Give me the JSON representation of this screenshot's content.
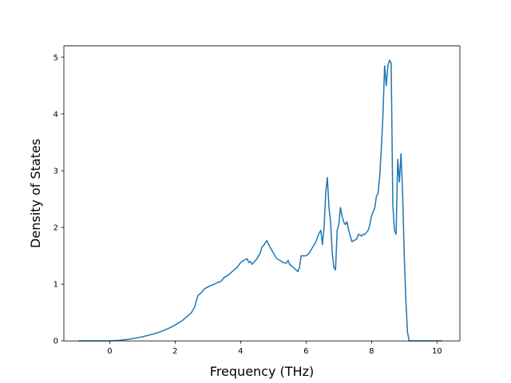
{
  "chart_data": {
    "type": "line",
    "title": "",
    "xlabel": "Frequency (THz)",
    "ylabel": "Density of States",
    "xlim": [
      -1.4,
      10.7
    ],
    "ylim": [
      0,
      5.2
    ],
    "xticks": [
      0,
      2,
      4,
      6,
      8,
      10
    ],
    "yticks": [
      0,
      1,
      2,
      3,
      4,
      5
    ],
    "grid": false,
    "legend": "none",
    "color": "#1f77b4",
    "series": [
      {
        "x": [
          -0.95,
          -0.5,
          0.0,
          0.3,
          0.6,
          0.9,
          1.2,
          1.5,
          1.8,
          2.0,
          2.2,
          2.35,
          2.5,
          2.6,
          2.65,
          2.7,
          2.8,
          2.9,
          3.0,
          3.1,
          3.2,
          3.3,
          3.4,
          3.5,
          3.6,
          3.7,
          3.8,
          3.9,
          4.0,
          4.1,
          4.2,
          4.25,
          4.3,
          4.35,
          4.4,
          4.5,
          4.6,
          4.65,
          4.7,
          4.8,
          4.9,
          5.0,
          5.1,
          5.2,
          5.3,
          5.4,
          5.45,
          5.5,
          5.6,
          5.7,
          5.75,
          5.8,
          5.85,
          5.9,
          6.0,
          6.1,
          6.2,
          6.3,
          6.4,
          6.45,
          6.5,
          6.55,
          6.6,
          6.65,
          6.7,
          6.75,
          6.8,
          6.85,
          6.9,
          6.95,
          7.0,
          7.05,
          7.1,
          7.15,
          7.2,
          7.25,
          7.3,
          7.4,
          7.5,
          7.55,
          7.6,
          7.7,
          7.75,
          7.8,
          7.9,
          7.95,
          8.0,
          8.1,
          8.15,
          8.2,
          8.25,
          8.3,
          8.35,
          8.4,
          8.45,
          8.5,
          8.55,
          8.6,
          8.65,
          8.7,
          8.75,
          8.8,
          8.85,
          8.9,
          8.95,
          9.0,
          9.05,
          9.1,
          9.15,
          9.2,
          9.25,
          9.3,
          9.5,
          9.8,
          10.15
        ],
        "y": [
          0,
          0,
          0,
          0.01,
          0.03,
          0.06,
          0.1,
          0.15,
          0.22,
          0.28,
          0.35,
          0.42,
          0.5,
          0.6,
          0.72,
          0.8,
          0.85,
          0.92,
          0.95,
          0.98,
          1.0,
          1.03,
          1.05,
          1.12,
          1.15,
          1.2,
          1.25,
          1.3,
          1.38,
          1.42,
          1.45,
          1.38,
          1.4,
          1.35,
          1.38,
          1.45,
          1.55,
          1.65,
          1.68,
          1.77,
          1.65,
          1.55,
          1.45,
          1.42,
          1.38,
          1.37,
          1.42,
          1.35,
          1.3,
          1.25,
          1.22,
          1.3,
          1.5,
          1.5,
          1.5,
          1.55,
          1.65,
          1.75,
          1.9,
          1.95,
          1.7,
          2.0,
          2.6,
          2.88,
          2.35,
          2.1,
          1.55,
          1.3,
          1.25,
          1.95,
          2.05,
          2.35,
          2.2,
          2.1,
          2.05,
          2.1,
          1.95,
          1.75,
          1.78,
          1.8,
          1.88,
          1.85,
          1.88,
          1.88,
          1.95,
          2.05,
          2.2,
          2.35,
          2.55,
          2.6,
          2.9,
          3.4,
          4.0,
          4.85,
          4.5,
          4.85,
          4.95,
          4.9,
          2.4,
          1.95,
          1.88,
          3.2,
          2.8,
          3.3,
          2.6,
          1.5,
          0.7,
          0.15,
          0,
          0,
          0,
          0,
          0,
          0,
          0
        ]
      }
    ]
  }
}
